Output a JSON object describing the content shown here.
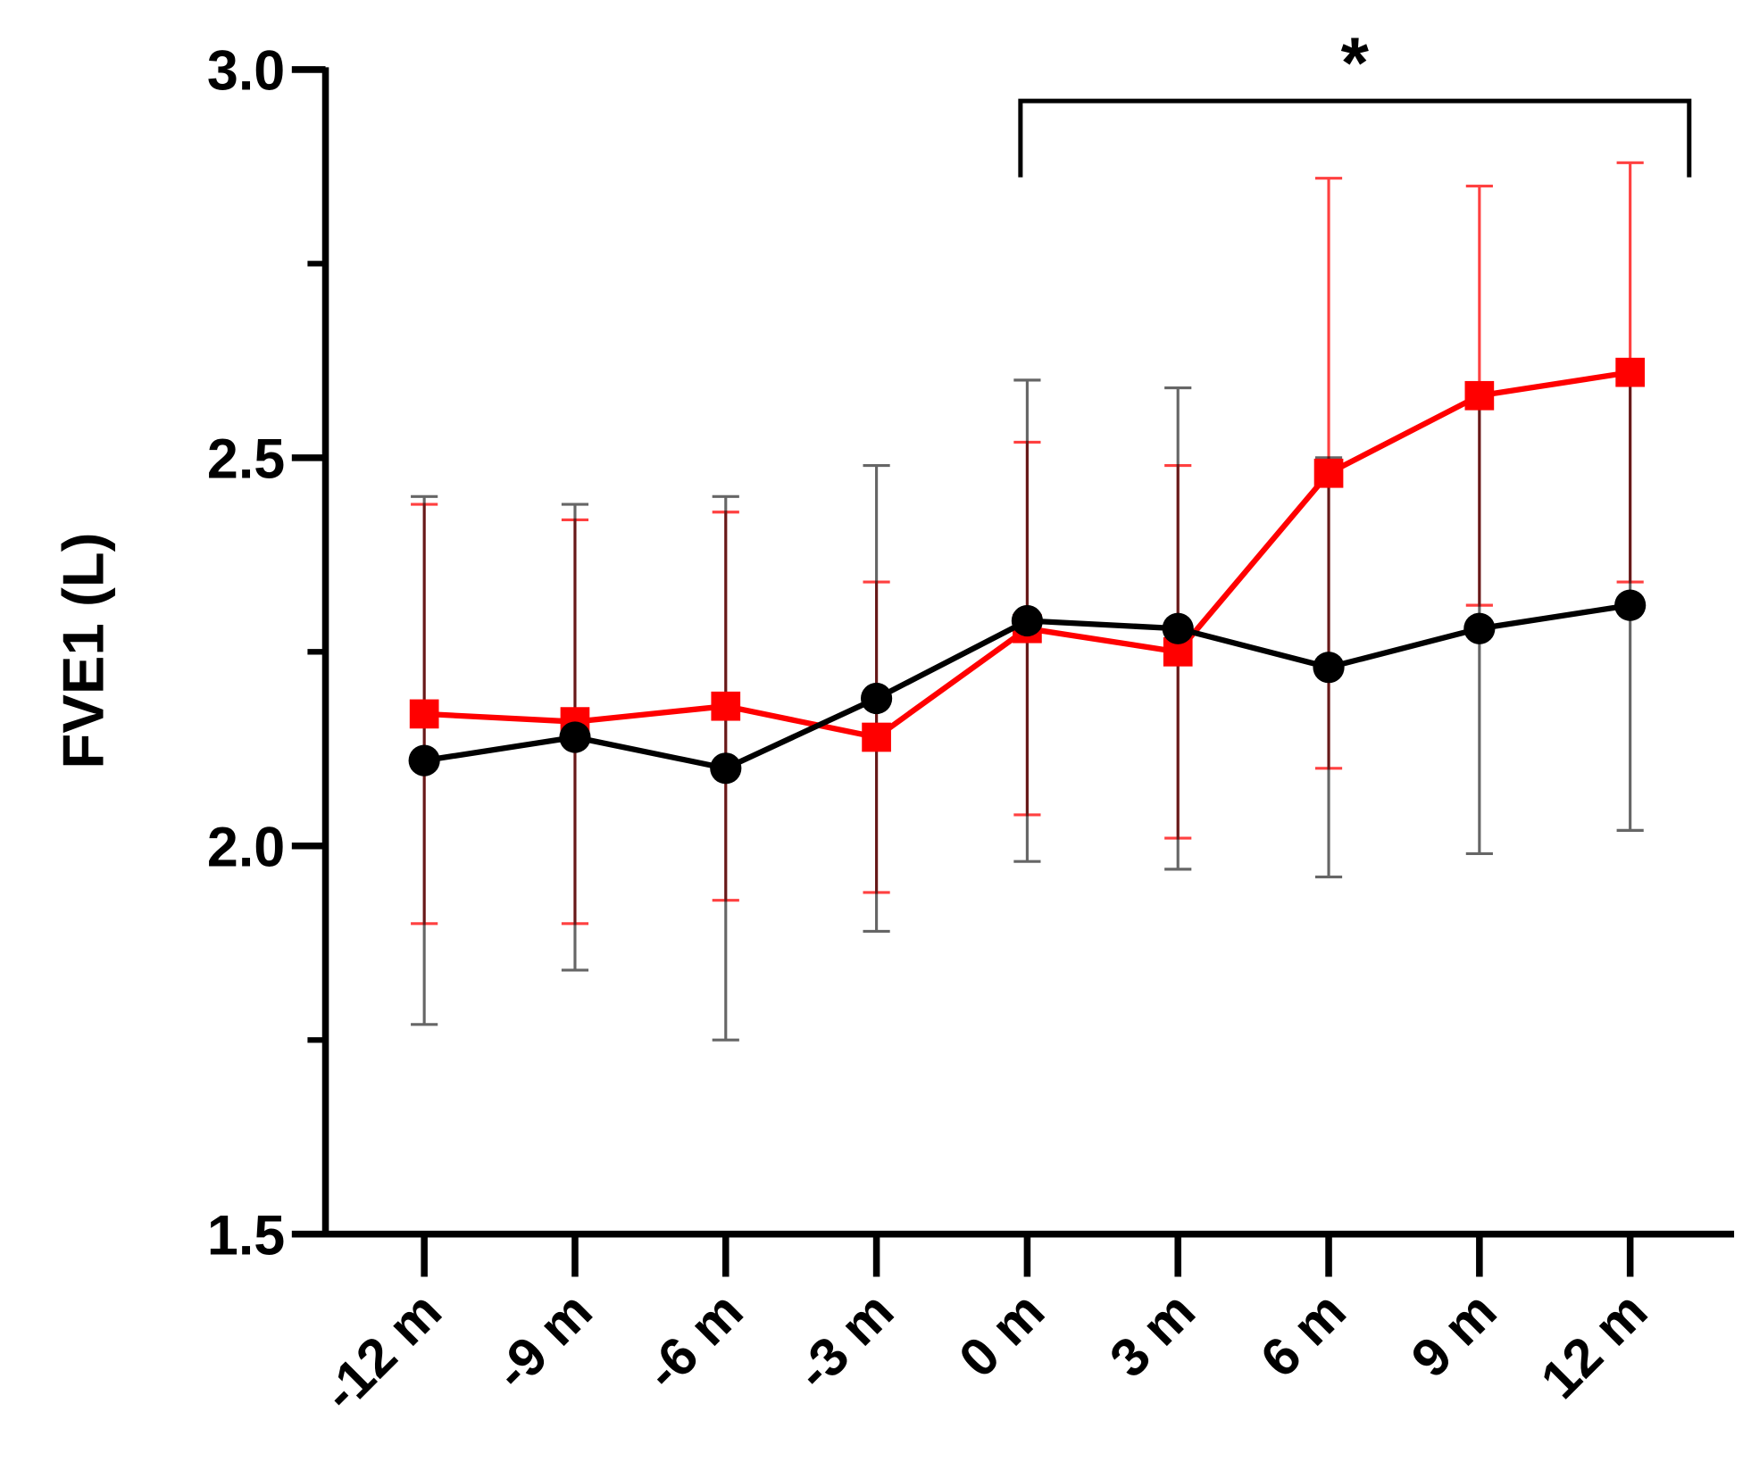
{
  "chart_data": {
    "type": "line",
    "y_label": "FVE1 (L)",
    "categories": [
      "-12 m",
      "-9 m",
      "-6 m",
      "-3 m",
      "0 m",
      "3 m",
      "6 m",
      "9 m",
      "12 m"
    ],
    "series": [
      {
        "color": "#ff0000",
        "marker": "square",
        "values": [
          2.17,
          2.16,
          2.18,
          2.14,
          2.28,
          2.25,
          2.48,
          2.58,
          2.61
        ],
        "errors": [
          0.27,
          0.26,
          0.25,
          0.2,
          0.24,
          0.24,
          0.38,
          0.27,
          0.27
        ]
      },
      {
        "color": "#000000",
        "marker": "circle",
        "values": [
          2.11,
          2.14,
          2.1,
          2.19,
          2.29,
          2.28,
          2.23,
          2.28,
          2.31
        ],
        "errors": [
          0.34,
          0.3,
          0.35,
          0.3,
          0.31,
          0.31,
          0.27,
          0.29,
          0.29
        ]
      }
    ],
    "ylim": [
      1.5,
      3
    ],
    "yticks": [
      {
        "value": 1.5,
        "label": "1.5"
      },
      {
        "value": 2,
        "label": "2.0"
      },
      {
        "value": 2.5,
        "label": "2.5"
      },
      {
        "value": 3,
        "label": "3.0"
      }
    ],
    "minor_yticks": [
      1.75,
      2.25,
      2.75
    ],
    "annotation": "*"
  }
}
